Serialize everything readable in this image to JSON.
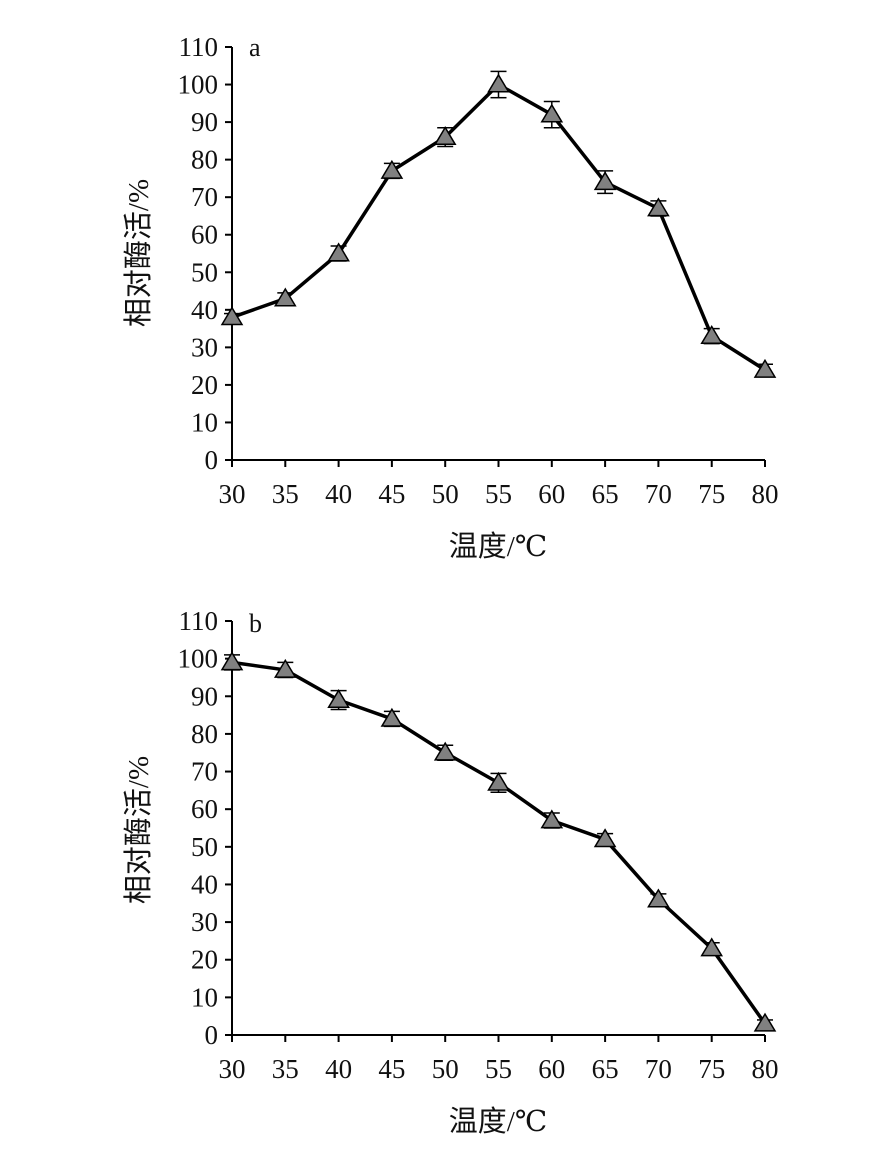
{
  "chart_data": [
    {
      "type": "line",
      "panel_label": "a",
      "xlabel": "温度/℃",
      "ylabel": "相对酶活/%",
      "x": [
        30,
        35,
        40,
        45,
        50,
        55,
        60,
        65,
        70,
        75,
        80
      ],
      "xlim": [
        30,
        80
      ],
      "ylim": [
        0,
        110
      ],
      "yticks": [
        0,
        10,
        20,
        30,
        40,
        50,
        60,
        70,
        80,
        90,
        100,
        110
      ],
      "grid": false,
      "legend": "none",
      "series": [
        {
          "values": [
            38,
            43,
            55,
            77,
            86,
            100,
            92,
            74,
            67,
            33,
            24
          ],
          "error": [
            1,
            1.5,
            2,
            2,
            2.5,
            3.5,
            3.5,
            3,
            2,
            2,
            1.5
          ],
          "marker": "triangle",
          "color": "#808080",
          "line_color": "#000000"
        }
      ]
    },
    {
      "type": "line",
      "panel_label": "b",
      "xlabel": "温度/℃",
      "ylabel": "相对酶活/%",
      "x": [
        30,
        35,
        40,
        45,
        50,
        55,
        60,
        65,
        70,
        75,
        80
      ],
      "xlim": [
        30,
        80
      ],
      "ylim": [
        0,
        110
      ],
      "yticks": [
        0,
        10,
        20,
        30,
        40,
        50,
        60,
        70,
        80,
        90,
        100,
        110
      ],
      "grid": false,
      "legend": "none",
      "series": [
        {
          "values": [
            99,
            97,
            89,
            84,
            75,
            67,
            57,
            52,
            36,
            23,
            3
          ],
          "error": [
            2,
            2,
            2.5,
            2,
            2,
            2.5,
            2,
            1.5,
            1.5,
            1.5,
            1
          ],
          "marker": "triangle",
          "color": "#808080",
          "line_color": "#000000"
        }
      ]
    }
  ]
}
